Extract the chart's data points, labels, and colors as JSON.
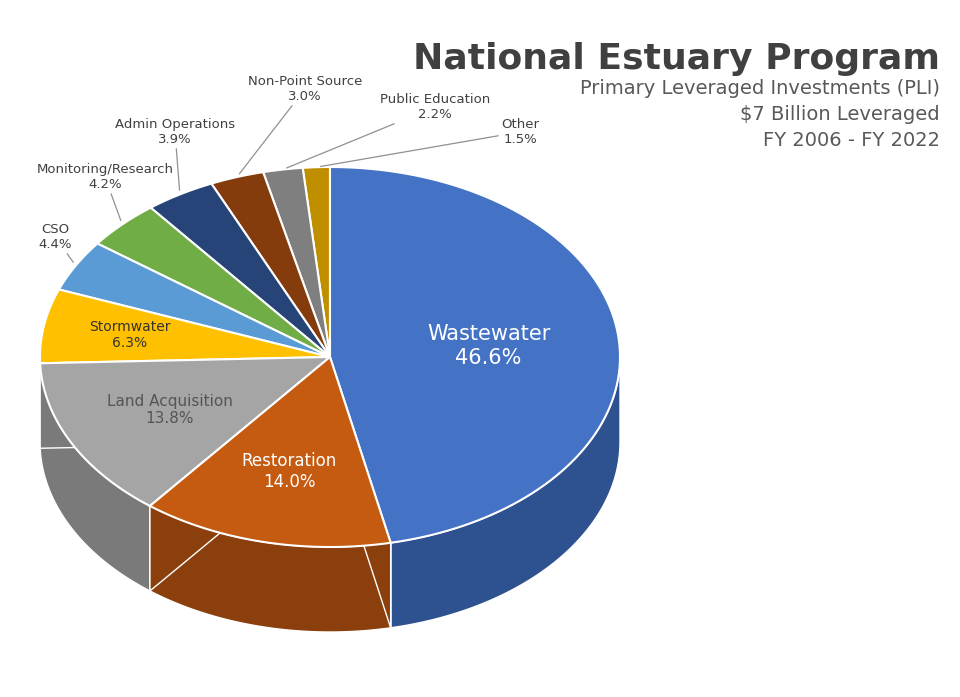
{
  "title_line1": "National Estuary Program",
  "title_line2": "Primary Leveraged Investments (PLI)",
  "title_line3": "$7 Billion Leveraged",
  "title_line4": "FY 2006 - FY 2022",
  "labels": [
    "Wastewater",
    "Restoration",
    "Land Acquisition",
    "Stormwater",
    "CSO",
    "Monitoring/Research",
    "Admin Operations",
    "Non-Point Source",
    "Public Education",
    "Other"
  ],
  "values": [
    46.6,
    14.0,
    13.8,
    6.3,
    4.4,
    4.2,
    3.9,
    3.0,
    2.2,
    1.5
  ],
  "colors": [
    "#4472C4",
    "#C55A11",
    "#A5A5A5",
    "#FFC000",
    "#5B9BD5",
    "#70AD47",
    "#264478",
    "#843C0C",
    "#7F7F7F",
    "#BF8F00"
  ],
  "side_colors": [
    "#2E5190",
    "#8B3F0C",
    "#7A7A7A",
    "#B58900",
    "#3B6FA0",
    "#507E35",
    "#1A3055",
    "#5E2A08",
    "#595959",
    "#8A6500"
  ],
  "background_color": "#FFFFFF",
  "title_color": "#404040",
  "subtitle_color": "#595959"
}
